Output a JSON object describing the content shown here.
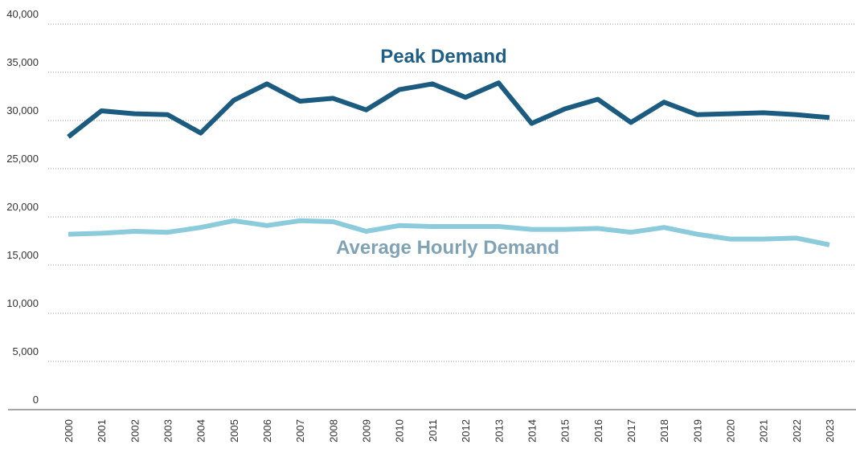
{
  "chart_data": {
    "type": "line",
    "categories": [
      "2000",
      "2001",
      "2002",
      "2003",
      "2004",
      "2005",
      "2006",
      "2007",
      "2008",
      "2009",
      "2010",
      "2011",
      "2012",
      "2013",
      "2014",
      "2015",
      "2016",
      "2017",
      "2018",
      "2019",
      "2020",
      "2021",
      "2022",
      "2023"
    ],
    "series": [
      {
        "name": "Peak Demand",
        "color": "#1c5b80",
        "values": [
          28300,
          31000,
          30700,
          30600,
          28700,
          32100,
          33800,
          32000,
          32300,
          31100,
          33200,
          33800,
          32400,
          33900,
          29700,
          31200,
          32200,
          29800,
          31900,
          30600,
          30700,
          30800,
          30600,
          30300
        ]
      },
      {
        "name": "Average Hourly Demand",
        "color": "#8ccbdb",
        "values": [
          18200,
          18300,
          18500,
          18400,
          18900,
          19600,
          19100,
          19600,
          19500,
          18500,
          19100,
          19000,
          19000,
          19000,
          18700,
          18700,
          18800,
          18400,
          18900,
          18200,
          17700,
          17700,
          17800,
          17100
        ]
      }
    ],
    "ylim": [
      0,
      40000
    ],
    "yticks": [
      0,
      {
        "value": 5000,
        "label": "5,000"
      },
      {
        "value": 10000,
        "label": "10,000"
      },
      {
        "value": 15000,
        "label": "15,000"
      },
      {
        "value": 20000,
        "label": "20,000"
      },
      {
        "value": 25000,
        "label": "25,000"
      },
      {
        "value": 30000,
        "label": "30,000"
      },
      {
        "value": 35000,
        "label": "35,000"
      },
      {
        "value": 40000,
        "label": "40,000"
      }
    ],
    "grid": true
  }
}
